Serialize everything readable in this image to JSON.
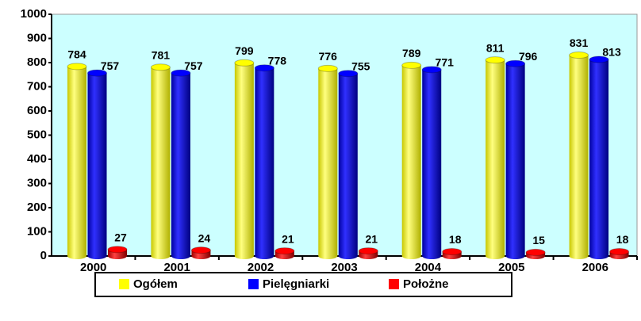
{
  "chart_data": {
    "type": "bar",
    "categories": [
      "2000",
      "2001",
      "2002",
      "2003",
      "2004",
      "2005",
      "2006"
    ],
    "series": [
      {
        "name": "Ogółem",
        "color": "#ffff00",
        "values": [
          784,
          781,
          799,
          776,
          789,
          811,
          831
        ]
      },
      {
        "name": "Pielęgniarki",
        "color": "#0000ff",
        "values": [
          757,
          757,
          778,
          755,
          771,
          796,
          813
        ]
      },
      {
        "name": "Położne",
        "color": "#ff0000",
        "values": [
          27,
          24,
          21,
          21,
          18,
          15,
          18
        ]
      }
    ],
    "ylim": [
      0,
      1000
    ],
    "yticks": [
      0,
      100,
      200,
      300,
      400,
      500,
      600,
      700,
      800,
      900,
      1000
    ],
    "grid": false,
    "legend": "bottom"
  }
}
